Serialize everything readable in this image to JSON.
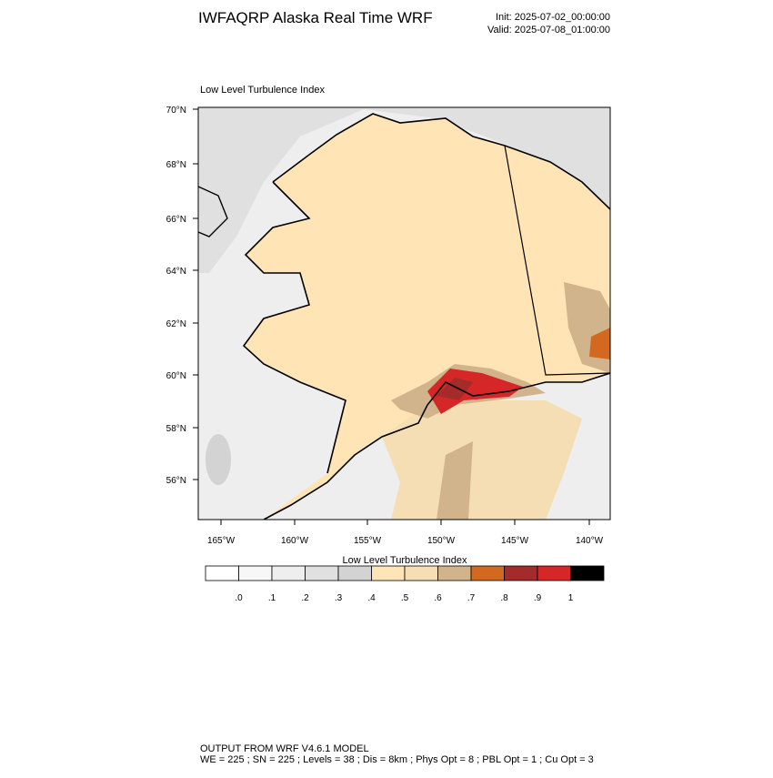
{
  "header": {
    "title": "IWFAQRP Alaska Real Time WRF",
    "init": "Init: 2025-07-02_00:00:00",
    "valid": "Valid: 2025-07-08_01:00:00"
  },
  "map": {
    "title": "Low Level Turbulence Index",
    "lat_labels": [
      "70°N",
      "68°N",
      "66°N",
      "64°N",
      "62°N",
      "60°N",
      "58°N",
      "56°N"
    ],
    "lon_labels": [
      "165°W",
      "160°W",
      "155°W",
      "150°W",
      "145°W",
      "140°W"
    ]
  },
  "colorbar": {
    "title": "Low Level Turbulence Index",
    "colors": [
      "#ffffff",
      "#f7f7f7",
      "#eeeeee",
      "#e0e0e0",
      "#d3d3d3",
      "#ffe4b5",
      "#f5deb3",
      "#d2b48c",
      "#d2691e",
      "#a52a2a",
      "#d62728",
      "#000000"
    ],
    "labels": [
      ".0",
      ".1",
      ".2",
      ".3",
      ".4",
      ".5",
      ".6",
      ".7",
      ".8",
      ".9",
      "1"
    ]
  },
  "footer": {
    "line1": "OUTPUT FROM WRF V4.6.1 MODEL",
    "line2": "WE = 225 ; SN = 225 ; Levels = 38 ; Dis = 8km ; Phys Opt = 8 ; PBL Opt = 1 ; Cu Opt = 3"
  }
}
